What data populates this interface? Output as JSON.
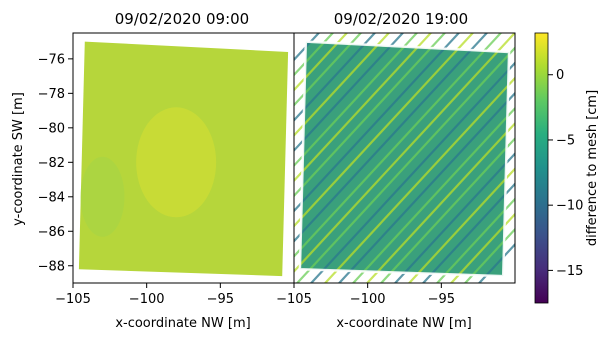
{
  "chart_data": {
    "type": "heatmap",
    "panels": [
      {
        "title": "09/02/2020 09:00",
        "xlabel": "x-coordinate NW [m]",
        "xlim": [
          -105,
          -90
        ],
        "xticks": [
          -105,
          -100,
          -95
        ],
        "tile_color": "#b6d63b",
        "stripes": false,
        "field_range_cm": [
          -3,
          2
        ]
      },
      {
        "title": "09/02/2020 19:00",
        "xlabel": "x-coordinate NW [m]",
        "xlim": [
          -105,
          -90
        ],
        "xticks": [
          -105,
          -100,
          -95
        ],
        "tile_color": "#3aa07c",
        "stripes": true,
        "field_range_cm": [
          -14,
          2
        ]
      }
    ],
    "ylabel": "y-coordinate SW [m]",
    "ylim": [
      -89,
      -74.5
    ],
    "yticks": [
      -76,
      -78,
      -80,
      -82,
      -84,
      -86,
      -88
    ],
    "colorbar": {
      "label": "difference to mesh [cm]",
      "range": [
        -17.5,
        3.2
      ],
      "ticks": [
        0,
        -5,
        -10,
        -15
      ],
      "colormap": "viridis"
    }
  }
}
